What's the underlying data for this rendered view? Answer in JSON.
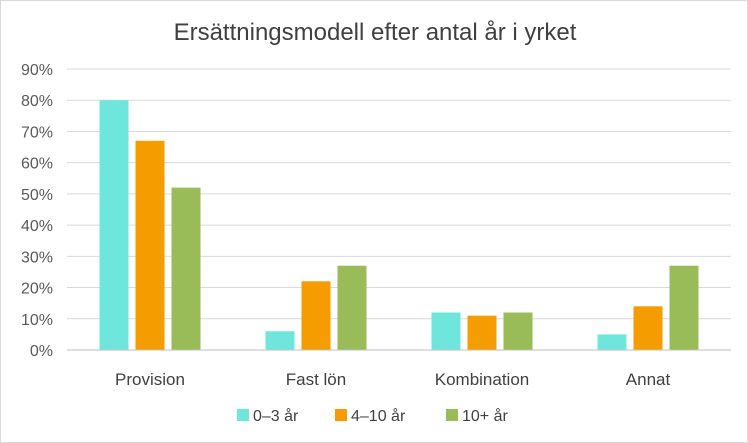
{
  "chart_data": {
    "type": "bar",
    "title": "Ersättningsmodell efter antal år i yrket",
    "xlabel": "",
    "ylabel": "",
    "categories": [
      "Provision",
      "Fast lön",
      "Kombination",
      "Annat"
    ],
    "series": [
      {
        "name": "0–3 år",
        "values": [
          80,
          6,
          12,
          5
        ],
        "color": "#6ee6dc"
      },
      {
        "name": "4–10 år",
        "values": [
          67,
          22,
          11,
          14
        ],
        "color": "#f59c00"
      },
      {
        "name": "10+ år",
        "values": [
          52,
          27,
          12,
          27
        ],
        "color": "#99bb58"
      }
    ],
    "ylim": [
      0,
      90
    ],
    "yticks": [
      "0%",
      "10%",
      "20%",
      "30%",
      "40%",
      "50%",
      "60%",
      "70%",
      "80%",
      "90%"
    ],
    "grid": true,
    "legend": "bottom"
  }
}
